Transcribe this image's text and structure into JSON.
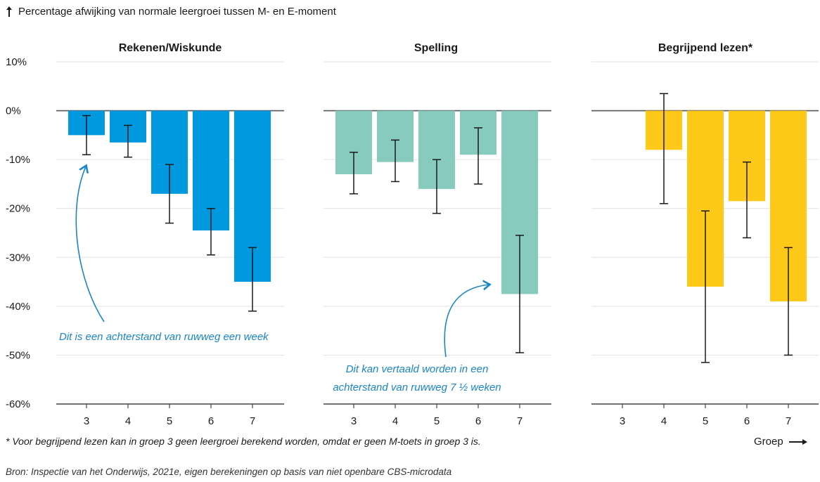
{
  "y_axis_label": "Percentage afwijking van normale leergroei tussen M- en E-moment",
  "x_axis_label": "Groep",
  "footnote": "* Voor begrijpend lezen kan in groep 3 geen leergroei berekend worden, omdat er geen M-toets in groep 3 is.",
  "source": "Bron: Inspectie van het Onderwijs, 2021e, eigen berekeningen op basis van niet openbare CBS-microdata",
  "annotations": {
    "rekenen": "Dit is een achterstand van ruwweg een week",
    "spelling_line1": "Dit kan vertaald worden in een",
    "spelling_line2": "achterstand van ruwweg 7 ½ weken"
  },
  "colors": {
    "rekenen": "#0099e0",
    "spelling": "#86cbbe",
    "lezen": "#ffc91a",
    "annotation": "#1a85c8"
  },
  "chart_data": [
    {
      "type": "bar",
      "title": "Rekenen/Wiskunde",
      "categories": [
        "3",
        "4",
        "5",
        "6",
        "7"
      ],
      "values": [
        -5,
        -6.5,
        -17,
        -24.5,
        -35
      ],
      "error_low": [
        -9,
        -9.5,
        -23,
        -29.5,
        -41
      ],
      "error_high": [
        -1,
        -3,
        -11,
        -20,
        -28
      ],
      "ylim": [
        -60,
        10
      ],
      "yticks": [
        "10%",
        "0%",
        "-10%",
        "-20%",
        "-30%",
        "-40%",
        "-50%",
        "-60%"
      ],
      "grid": true
    },
    {
      "type": "bar",
      "title": "Spelling",
      "categories": [
        "3",
        "4",
        "5",
        "6",
        "7"
      ],
      "values": [
        -13,
        -10.5,
        -16,
        -9,
        -37.5
      ],
      "error_low": [
        -17,
        -14.5,
        -21,
        -15,
        -49.5
      ],
      "error_high": [
        -8.5,
        -6,
        -10,
        -3.5,
        -25.5
      ],
      "ylim": [
        -60,
        10
      ],
      "grid": true
    },
    {
      "type": "bar",
      "title": "Begrijpend lezen*",
      "categories": [
        "3",
        "4",
        "5",
        "6",
        "7"
      ],
      "values": [
        null,
        -8,
        -36,
        -18.5,
        -39
      ],
      "error_low": [
        null,
        -19,
        -51.5,
        -26,
        -50
      ],
      "error_high": [
        null,
        3.5,
        -20.5,
        -10.5,
        -28
      ],
      "ylim": [
        -60,
        10
      ],
      "grid": true
    }
  ]
}
